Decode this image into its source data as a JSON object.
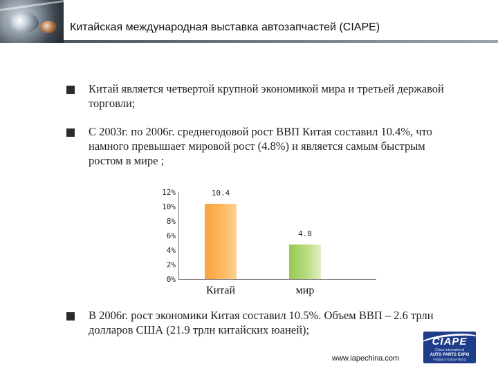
{
  "header": {
    "title": "Китайская международная выставка автозапчастей (CIAPE)"
  },
  "bullets": [
    {
      "text": "Китай является четвертой крупной экономикой мира и третьей державой торговли;"
    },
    {
      "text": "С 2003г. по 2006г. среднегодовой рост ВВП Китая составил 10.4%, что намного превышает мировой рост (4.8%) и является самым быстрым ростом в мире ;"
    },
    {
      "text": "В 2006г. рост экономики Китая составил 10.5%. Объем ВВП – 2.6 трлн долларов США (21.9 трлн китайских юаней);"
    }
  ],
  "chart_data": {
    "type": "bar",
    "categories": [
      "Китай",
      "мир"
    ],
    "values": [
      10.4,
      4.8
    ],
    "value_labels": [
      "10.4",
      "4.8"
    ],
    "y_ticks": [
      "0%",
      "2%",
      "4%",
      "6%",
      "8%",
      "10%",
      "12%"
    ],
    "ylim": [
      0,
      12
    ],
    "colors": [
      "#f7a340",
      "#97c94f"
    ]
  },
  "logo": {
    "brand": "CIAPE",
    "line1": "China International",
    "line2": "AUTO PARTS EXPO",
    "line3": "中国国际汽车零部件博览会"
  },
  "footer": {
    "url": "www.iapechina.com"
  }
}
